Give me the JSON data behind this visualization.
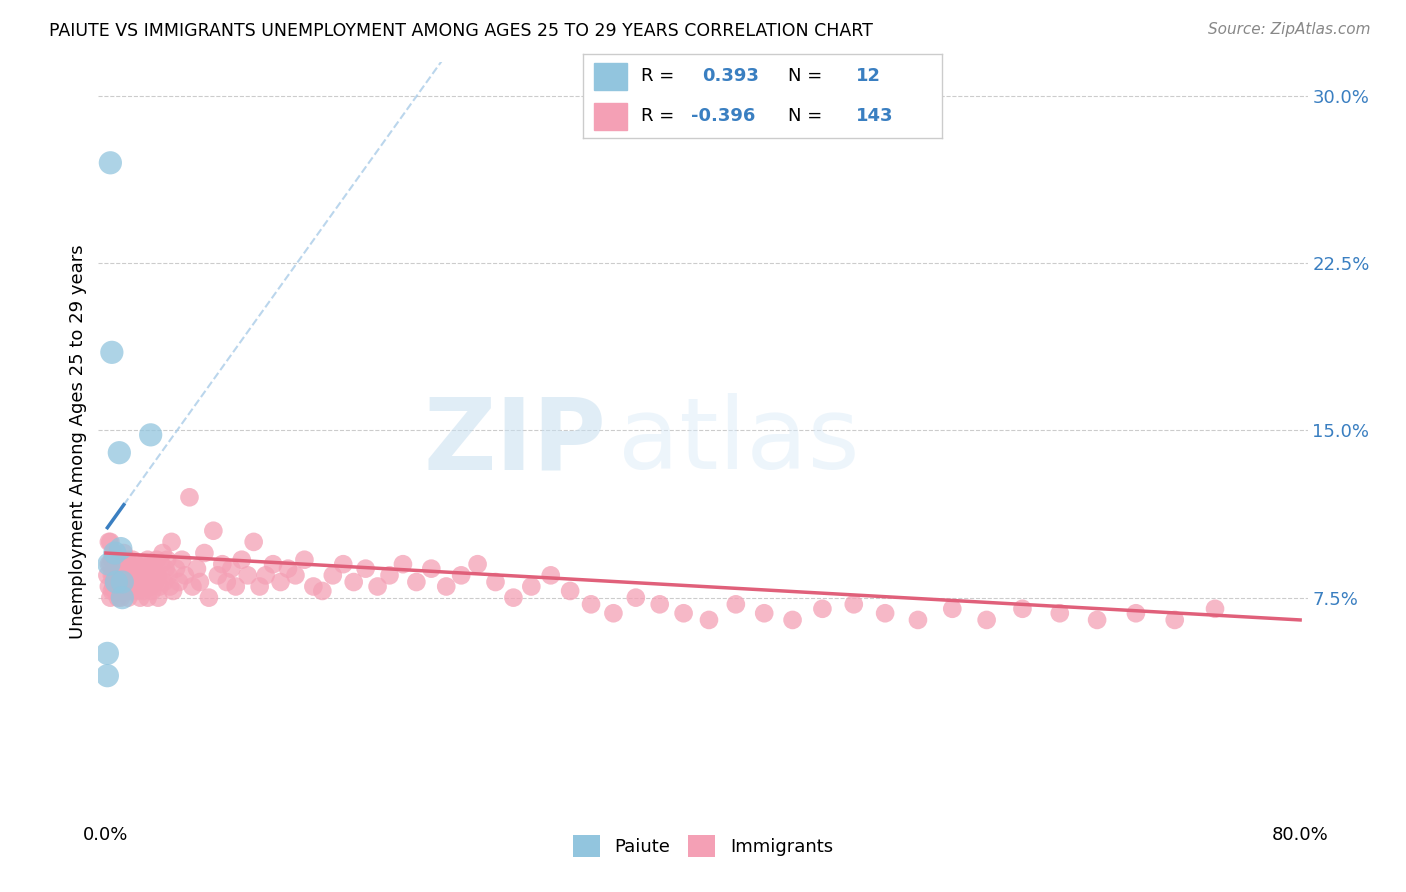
{
  "title": "PAIUTE VS IMMIGRANTS UNEMPLOYMENT AMONG AGES 25 TO 29 YEARS CORRELATION CHART",
  "source": "Source: ZipAtlas.com",
  "ylabel": "Unemployment Among Ages 25 to 29 years",
  "xlim": [
    -0.005,
    0.805
  ],
  "ylim": [
    -0.025,
    0.315
  ],
  "yticks": [
    0.075,
    0.15,
    0.225,
    0.3
  ],
  "ytick_labels": [
    "7.5%",
    "15.0%",
    "22.5%",
    "30.0%"
  ],
  "xticks": [
    0.0,
    0.1,
    0.2,
    0.3,
    0.4,
    0.5,
    0.6,
    0.7,
    0.8
  ],
  "xtick_labels": [
    "0.0%",
    "",
    "",
    "",
    "",
    "",
    "",
    "",
    "80.0%"
  ],
  "paiute_r": 0.393,
  "paiute_n": 12,
  "immigrants_r": -0.396,
  "immigrants_n": 143,
  "paiute_color": "#92c5de",
  "immigrants_color": "#f4a0b5",
  "paiute_line_color": "#3a7fc1",
  "immigrants_line_color": "#e0607a",
  "axis_text_color": "#3a7fc1",
  "background_color": "#ffffff",
  "grid_color": "#cccccc",
  "paiute_x": [
    0.001,
    0.001,
    0.002,
    0.003,
    0.004,
    0.006,
    0.007,
    0.009,
    0.01,
    0.011,
    0.011,
    0.03
  ],
  "paiute_y": [
    0.05,
    0.04,
    0.09,
    0.27,
    0.185,
    0.095,
    0.082,
    0.14,
    0.097,
    0.082,
    0.075,
    0.148
  ],
  "immigrants_x": [
    0.001,
    0.002,
    0.002,
    0.002,
    0.003,
    0.003,
    0.003,
    0.004,
    0.004,
    0.004,
    0.005,
    0.005,
    0.005,
    0.006,
    0.006,
    0.006,
    0.007,
    0.007,
    0.007,
    0.008,
    0.008,
    0.008,
    0.009,
    0.009,
    0.009,
    0.01,
    0.01,
    0.01,
    0.011,
    0.011,
    0.012,
    0.012,
    0.013,
    0.013,
    0.014,
    0.014,
    0.015,
    0.015,
    0.016,
    0.016,
    0.017,
    0.017,
    0.018,
    0.018,
    0.019,
    0.02,
    0.02,
    0.021,
    0.021,
    0.022,
    0.023,
    0.023,
    0.024,
    0.025,
    0.025,
    0.026,
    0.027,
    0.028,
    0.028,
    0.029,
    0.03,
    0.03,
    0.031,
    0.032,
    0.033,
    0.034,
    0.035,
    0.035,
    0.036,
    0.037,
    0.038,
    0.039,
    0.04,
    0.041,
    0.042,
    0.043,
    0.044,
    0.045,
    0.047,
    0.049,
    0.051,
    0.053,
    0.056,
    0.058,
    0.061,
    0.063,
    0.066,
    0.069,
    0.072,
    0.075,
    0.078,
    0.081,
    0.084,
    0.087,
    0.091,
    0.095,
    0.099,
    0.103,
    0.107,
    0.112,
    0.117,
    0.122,
    0.127,
    0.133,
    0.139,
    0.145,
    0.152,
    0.159,
    0.166,
    0.174,
    0.182,
    0.19,
    0.199,
    0.208,
    0.218,
    0.228,
    0.238,
    0.249,
    0.261,
    0.273,
    0.285,
    0.298,
    0.311,
    0.325,
    0.34,
    0.355,
    0.371,
    0.387,
    0.404,
    0.422,
    0.441,
    0.46,
    0.48,
    0.501,
    0.522,
    0.544,
    0.567,
    0.59,
    0.614,
    0.639,
    0.664,
    0.69,
    0.716,
    0.743
  ],
  "immigrants_y": [
    0.085,
    0.09,
    0.1,
    0.08,
    0.075,
    0.09,
    0.1,
    0.085,
    0.078,
    0.092,
    0.08,
    0.095,
    0.085,
    0.078,
    0.092,
    0.085,
    0.08,
    0.09,
    0.078,
    0.085,
    0.092,
    0.075,
    0.085,
    0.08,
    0.09,
    0.082,
    0.088,
    0.075,
    0.085,
    0.09,
    0.08,
    0.095,
    0.078,
    0.088,
    0.082,
    0.092,
    0.075,
    0.085,
    0.08,
    0.09,
    0.078,
    0.088,
    0.082,
    0.092,
    0.085,
    0.08,
    0.09,
    0.078,
    0.088,
    0.082,
    0.075,
    0.085,
    0.08,
    0.09,
    0.078,
    0.088,
    0.082,
    0.092,
    0.075,
    0.085,
    0.08,
    0.09,
    0.078,
    0.088,
    0.082,
    0.092,
    0.075,
    0.085,
    0.08,
    0.09,
    0.095,
    0.082,
    0.088,
    0.092,
    0.085,
    0.08,
    0.1,
    0.078,
    0.088,
    0.082,
    0.092,
    0.085,
    0.12,
    0.08,
    0.088,
    0.082,
    0.095,
    0.075,
    0.105,
    0.085,
    0.09,
    0.082,
    0.088,
    0.08,
    0.092,
    0.085,
    0.1,
    0.08,
    0.085,
    0.09,
    0.082,
    0.088,
    0.085,
    0.092,
    0.08,
    0.078,
    0.085,
    0.09,
    0.082,
    0.088,
    0.08,
    0.085,
    0.09,
    0.082,
    0.088,
    0.08,
    0.085,
    0.09,
    0.082,
    0.075,
    0.08,
    0.085,
    0.078,
    0.072,
    0.068,
    0.075,
    0.072,
    0.068,
    0.065,
    0.072,
    0.068,
    0.065,
    0.07,
    0.072,
    0.068,
    0.065,
    0.07,
    0.065,
    0.07,
    0.068,
    0.065,
    0.068,
    0.065,
    0.07
  ]
}
